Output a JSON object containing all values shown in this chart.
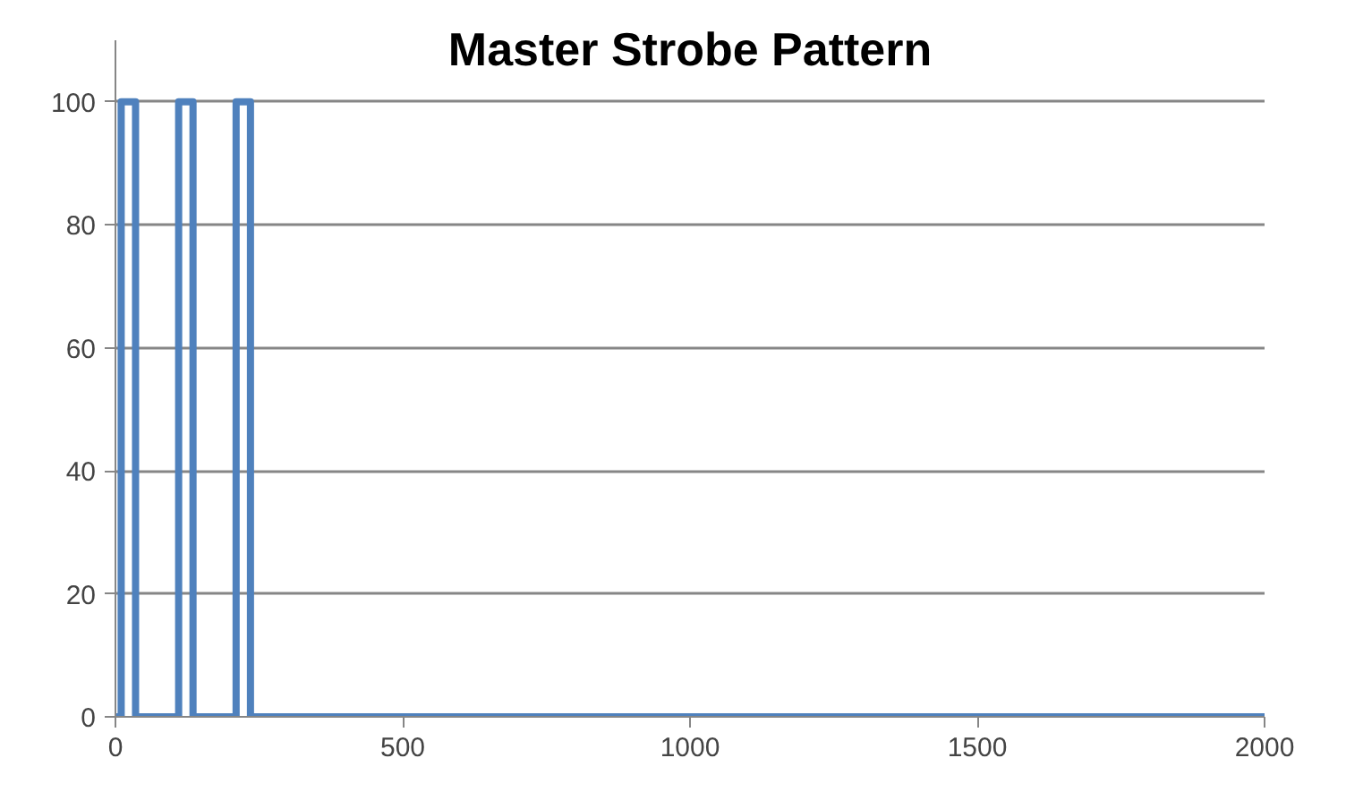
{
  "chart_data": {
    "type": "line",
    "title": "Master Strobe Pattern",
    "series": [
      {
        "color": "#4f81bd",
        "x": [
          0,
          10,
          10,
          35,
          35,
          110,
          110,
          135,
          135,
          210,
          210,
          235,
          235,
          2000
        ],
        "values": [
          0,
          0,
          100,
          100,
          0,
          0,
          100,
          100,
          0,
          0,
          100,
          100,
          0,
          0
        ]
      }
    ],
    "xlim": [
      0,
      2000
    ],
    "xticks": [
      0,
      500,
      1000,
      1500,
      2000
    ],
    "ylim": [
      0,
      110
    ],
    "yticks": [
      0,
      20,
      40,
      60,
      80,
      100
    ],
    "grid": "y",
    "marker": "none",
    "line_style": "solid"
  }
}
